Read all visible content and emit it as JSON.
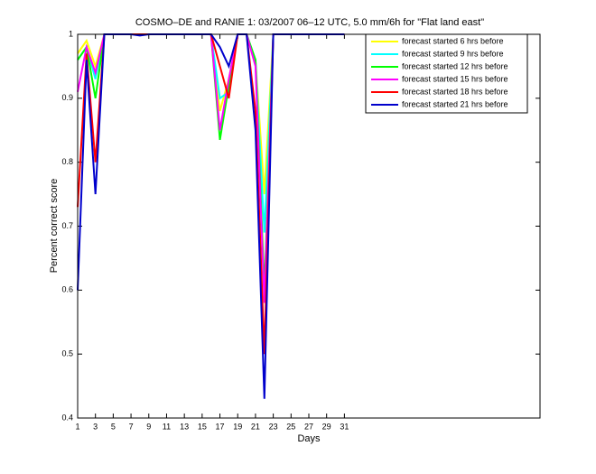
{
  "chart_data": {
    "type": "line",
    "title": "COSMO–DE and RANIE 1: 03/2007 06–12 UTC, 5.0 mm/6h for \"Flat land east\"",
    "xlabel": "Days",
    "ylabel": "Percent correct score",
    "x": [
      1,
      2,
      3,
      4,
      5,
      6,
      7,
      8,
      9,
      10,
      11,
      12,
      13,
      14,
      15,
      16,
      17,
      18,
      19,
      20,
      21,
      22,
      23,
      24,
      25,
      26,
      27,
      28,
      29,
      30,
      31
    ],
    "xlim": [
      1,
      53
    ],
    "xticks": [
      1,
      3,
      5,
      7,
      9,
      11,
      13,
      15,
      17,
      19,
      21,
      23,
      25,
      27,
      29,
      31
    ],
    "ylim": [
      0.4,
      1
    ],
    "yticks": [
      0.4,
      0.5,
      0.6,
      0.7,
      0.8,
      0.9,
      1
    ],
    "legend_position": "upper right",
    "series": [
      {
        "name": "forecast started 6 hrs before",
        "color": "#ffff00",
        "values": [
          0.97,
          0.99,
          0.95,
          1,
          1,
          1,
          1,
          1,
          1,
          1,
          1,
          1,
          1,
          1,
          1,
          1,
          0.88,
          0.93,
          1,
          1,
          0.96,
          0.75,
          1,
          1,
          1,
          1,
          1,
          1,
          1,
          1,
          1
        ]
      },
      {
        "name": "forecast started 9 hrs before",
        "color": "#00ffff",
        "values": [
          0.96,
          0.98,
          0.93,
          1,
          1,
          1,
          1,
          1,
          1,
          1,
          1,
          1,
          1,
          1,
          1,
          1,
          0.9,
          0.91,
          1,
          1,
          0.96,
          0.69,
          1,
          1,
          1,
          1,
          1,
          1,
          1,
          1,
          1
        ]
      },
      {
        "name": "forecast started 12 hrs before",
        "color": "#00ff00",
        "values": [
          0.96,
          0.98,
          0.9,
          1,
          1,
          1,
          1,
          1,
          1,
          1,
          1,
          1,
          1,
          1,
          1,
          1,
          0.835,
          0.92,
          1,
          1,
          0.96,
          0.6,
          1,
          1,
          1,
          1,
          1,
          1,
          1,
          1,
          1
        ]
      },
      {
        "name": "forecast started 15 hrs before",
        "color": "#ff00ff",
        "values": [
          0.91,
          0.98,
          0.94,
          1,
          1,
          1,
          1,
          1,
          1,
          1,
          1,
          1,
          1,
          1,
          1,
          1,
          0.85,
          0.93,
          1,
          1,
          0.95,
          0.58,
          1,
          1,
          1,
          1,
          1,
          1,
          1,
          1,
          1
        ]
      },
      {
        "name": "forecast started 18 hrs before",
        "color": "#ff0000",
        "values": [
          0.73,
          0.97,
          0.8,
          1,
          1,
          1,
          1,
          1,
          1,
          1,
          1,
          1,
          1,
          1,
          1,
          1,
          0.95,
          0.9,
          1,
          1,
          0.88,
          0.5,
          1,
          1,
          1,
          1,
          1,
          1,
          1,
          1,
          1
        ]
      },
      {
        "name": "forecast started 21 hrs before",
        "color": "#0000cc",
        "values": [
          0.6,
          0.96,
          0.75,
          1,
          1,
          1,
          1,
          0.998,
          1,
          1,
          1,
          1,
          1,
          1,
          1,
          1,
          0.98,
          0.95,
          1,
          1,
          0.85,
          0.43,
          1,
          1,
          1,
          1,
          1,
          1,
          1,
          1,
          1
        ]
      }
    ]
  }
}
